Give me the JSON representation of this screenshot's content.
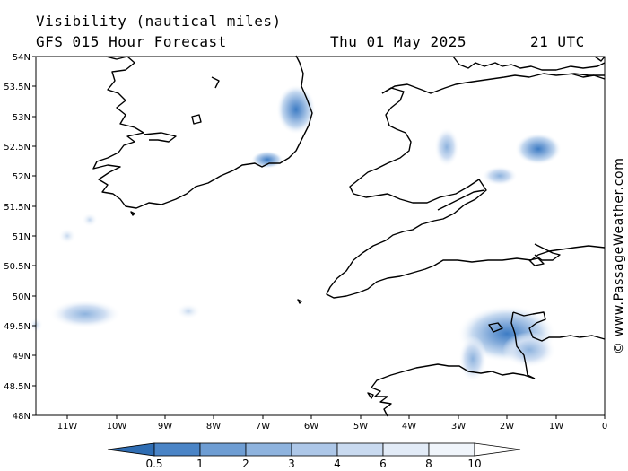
{
  "header": {
    "title": "Visibility (nautical miles)",
    "subtitle": "GFS 015 Hour Forecast",
    "date": "Thu 01 May 2025",
    "time": "21 UTC"
  },
  "axes": {
    "y_labels": [
      "54N",
      "53.5N",
      "53N",
      "52.5N",
      "52N",
      "51.5N",
      "51N",
      "50.5N",
      "50N",
      "49.5N",
      "49N",
      "48.5N",
      "48N"
    ],
    "x_labels": [
      "11W",
      "10W",
      "9W",
      "8W",
      "7W",
      "6W",
      "5W",
      "4W",
      "3W",
      "2W",
      "1W",
      "0"
    ]
  },
  "legend": {
    "labels": [
      "0.5",
      "1",
      "2",
      "3",
      "4",
      "6",
      "8",
      "10"
    ],
    "colors": [
      "#2f6db3",
      "#4a84c6",
      "#6e9dd3",
      "#8eb3de",
      "#adc7e8",
      "#c9daf0",
      "#e2ebf7",
      "#f7fafd"
    ]
  },
  "credit": "© www.PassageWeather.com"
}
